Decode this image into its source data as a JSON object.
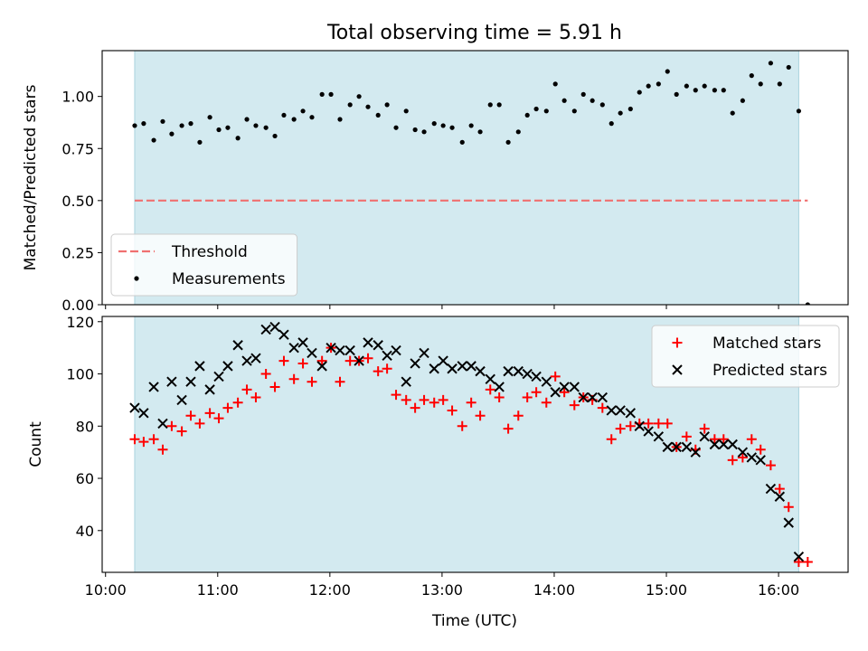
{
  "chart_data": {
    "title": "Total observing time = 5.91 h",
    "shade_color": "#d3eaf0",
    "time_ticks": [
      "10:00",
      "11:00",
      "12:00",
      "13:00",
      "14:00",
      "15:00",
      "16:00"
    ],
    "x_unit": "hours UTC",
    "xlim": [
      9.97,
      16.62
    ],
    "shaded_range": [
      10.26,
      16.18
    ],
    "xlabel": "Time (UTC)",
    "panels": [
      {
        "type": "scatter",
        "ylabel": "Matched/Predicted stars",
        "ylim": [
          0,
          1.22
        ],
        "yticks": [
          "0.00",
          "0.25",
          "0.50",
          "0.75",
          "1.00"
        ],
        "legend_position": "lower-left",
        "threshold": {
          "name": "Threshold",
          "value": 0.5,
          "x_range": [
            10.26,
            16.26
          ],
          "color": "#f07070"
        },
        "series": [
          {
            "name": "Measurements",
            "marker": "dot",
            "color": "#000000",
            "x": [
              10.26,
              10.34,
              10.43,
              10.51,
              10.59,
              10.68,
              10.76,
              10.84,
              10.93,
              11.01,
              11.09,
              11.18,
              11.26,
              11.34,
              11.43,
              11.51,
              11.59,
              11.68,
              11.76,
              11.84,
              11.93,
              12.01,
              12.09,
              12.18,
              12.26,
              12.34,
              12.43,
              12.51,
              12.59,
              12.68,
              12.76,
              12.84,
              12.93,
              13.01,
              13.09,
              13.18,
              13.26,
              13.34,
              13.43,
              13.51,
              13.59,
              13.68,
              13.76,
              13.84,
              13.93,
              14.01,
              14.09,
              14.18,
              14.26,
              14.34,
              14.43,
              14.51,
              14.59,
              14.68,
              14.76,
              14.84,
              14.93,
              15.01,
              15.09,
              15.18,
              15.26,
              15.34,
              15.43,
              15.51,
              15.59,
              15.68,
              15.76,
              15.84,
              15.93,
              16.01,
              16.09,
              16.18,
              16.26
            ],
            "values": [
              0.86,
              0.87,
              0.79,
              0.88,
              0.82,
              0.86,
              0.87,
              0.78,
              0.9,
              0.84,
              0.85,
              0.8,
              0.89,
              0.86,
              0.85,
              0.81,
              0.91,
              0.89,
              0.93,
              0.9,
              1.01,
              1.01,
              0.89,
              0.96,
              1.0,
              0.95,
              0.91,
              0.96,
              0.85,
              0.93,
              0.84,
              0.83,
              0.87,
              0.86,
              0.85,
              0.78,
              0.86,
              0.83,
              0.96,
              0.96,
              0.78,
              0.83,
              0.91,
              0.94,
              0.93,
              1.06,
              0.98,
              0.93,
              1.01,
              0.98,
              0.96,
              0.87,
              0.92,
              0.94,
              1.02,
              1.05,
              1.06,
              1.12,
              1.01,
              1.05,
              1.03,
              1.05,
              1.03,
              1.03,
              0.92,
              0.98,
              1.1,
              1.06,
              1.16,
              1.06,
              1.14,
              0.93,
              0.0
            ]
          }
        ]
      },
      {
        "type": "scatter",
        "ylabel": "Count",
        "ylim": [
          24,
          122
        ],
        "yticks": [
          "40",
          "60",
          "80",
          "100",
          "120"
        ],
        "legend_position": "upper-right",
        "series": [
          {
            "name": "Matched stars",
            "marker": "plus",
            "color": "#ff0000",
            "x": [
              10.26,
              10.34,
              10.43,
              10.51,
              10.59,
              10.68,
              10.76,
              10.84,
              10.93,
              11.01,
              11.09,
              11.18,
              11.26,
              11.34,
              11.43,
              11.51,
              11.59,
              11.68,
              11.76,
              11.84,
              11.93,
              12.01,
              12.09,
              12.18,
              12.26,
              12.34,
              12.43,
              12.51,
              12.59,
              12.68,
              12.76,
              12.84,
              12.93,
              13.01,
              13.09,
              13.18,
              13.26,
              13.34,
              13.43,
              13.51,
              13.59,
              13.68,
              13.76,
              13.84,
              13.93,
              14.01,
              14.09,
              14.18,
              14.26,
              14.34,
              14.43,
              14.51,
              14.59,
              14.68,
              14.76,
              14.84,
              14.93,
              15.01,
              15.09,
              15.18,
              15.26,
              15.34,
              15.43,
              15.51,
              15.59,
              15.68,
              15.76,
              15.84,
              15.93,
              16.01,
              16.09,
              16.18,
              16.26
            ],
            "values": [
              75,
              74,
              75,
              71,
              80,
              78,
              84,
              81,
              85,
              83,
              87,
              89,
              94,
              91,
              100,
              95,
              105,
              98,
              104,
              97,
              105,
              110,
              97,
              105,
              105,
              106,
              101,
              102,
              92,
              90,
              87,
              90,
              89,
              90,
              86,
              80,
              89,
              84,
              94,
              91,
              79,
              84,
              91,
              93,
              89,
              99,
              93,
              88,
              91,
              90,
              87,
              75,
              79,
              80,
              81,
              81,
              81,
              81,
              72,
              76,
              71,
              79,
              75,
              75,
              67,
              68,
              75,
              71,
              65,
              56,
              49,
              28,
              28
            ]
          },
          {
            "name": "Predicted stars",
            "marker": "x",
            "color": "#000000",
            "x": [
              10.26,
              10.34,
              10.43,
              10.51,
              10.59,
              10.68,
              10.76,
              10.84,
              10.93,
              11.01,
              11.09,
              11.18,
              11.26,
              11.34,
              11.43,
              11.51,
              11.59,
              11.68,
              11.76,
              11.84,
              11.93,
              12.01,
              12.09,
              12.18,
              12.26,
              12.34,
              12.43,
              12.51,
              12.59,
              12.68,
              12.76,
              12.84,
              12.93,
              13.01,
              13.09,
              13.18,
              13.26,
              13.34,
              13.43,
              13.51,
              13.59,
              13.68,
              13.76,
              13.84,
              13.93,
              14.01,
              14.09,
              14.18,
              14.26,
              14.34,
              14.43,
              14.51,
              14.59,
              14.68,
              14.76,
              14.84,
              14.93,
              15.01,
              15.09,
              15.18,
              15.26,
              15.34,
              15.43,
              15.51,
              15.59,
              15.68,
              15.76,
              15.84,
              15.93,
              16.01,
              16.09,
              16.18
            ],
            "values": [
              87,
              85,
              95,
              81,
              97,
              90,
              97,
              103,
              94,
              99,
              103,
              111,
              105,
              106,
              117,
              118,
              115,
              110,
              112,
              108,
              103,
              110,
              109,
              109,
              105,
              112,
              111,
              107,
              109,
              97,
              104,
              108,
              102,
              105,
              102,
              103,
              103,
              101,
              98,
              95,
              101,
              101,
              100,
              99,
              97,
              93,
              95,
              95,
              91,
              91,
              91,
              86,
              86,
              85,
              80,
              78,
              76,
              72,
              72,
              72,
              70,
              76,
              73,
              73,
              73,
              70,
              68,
              67,
              56,
              53,
              43,
              30
            ]
          }
        ]
      }
    ]
  }
}
